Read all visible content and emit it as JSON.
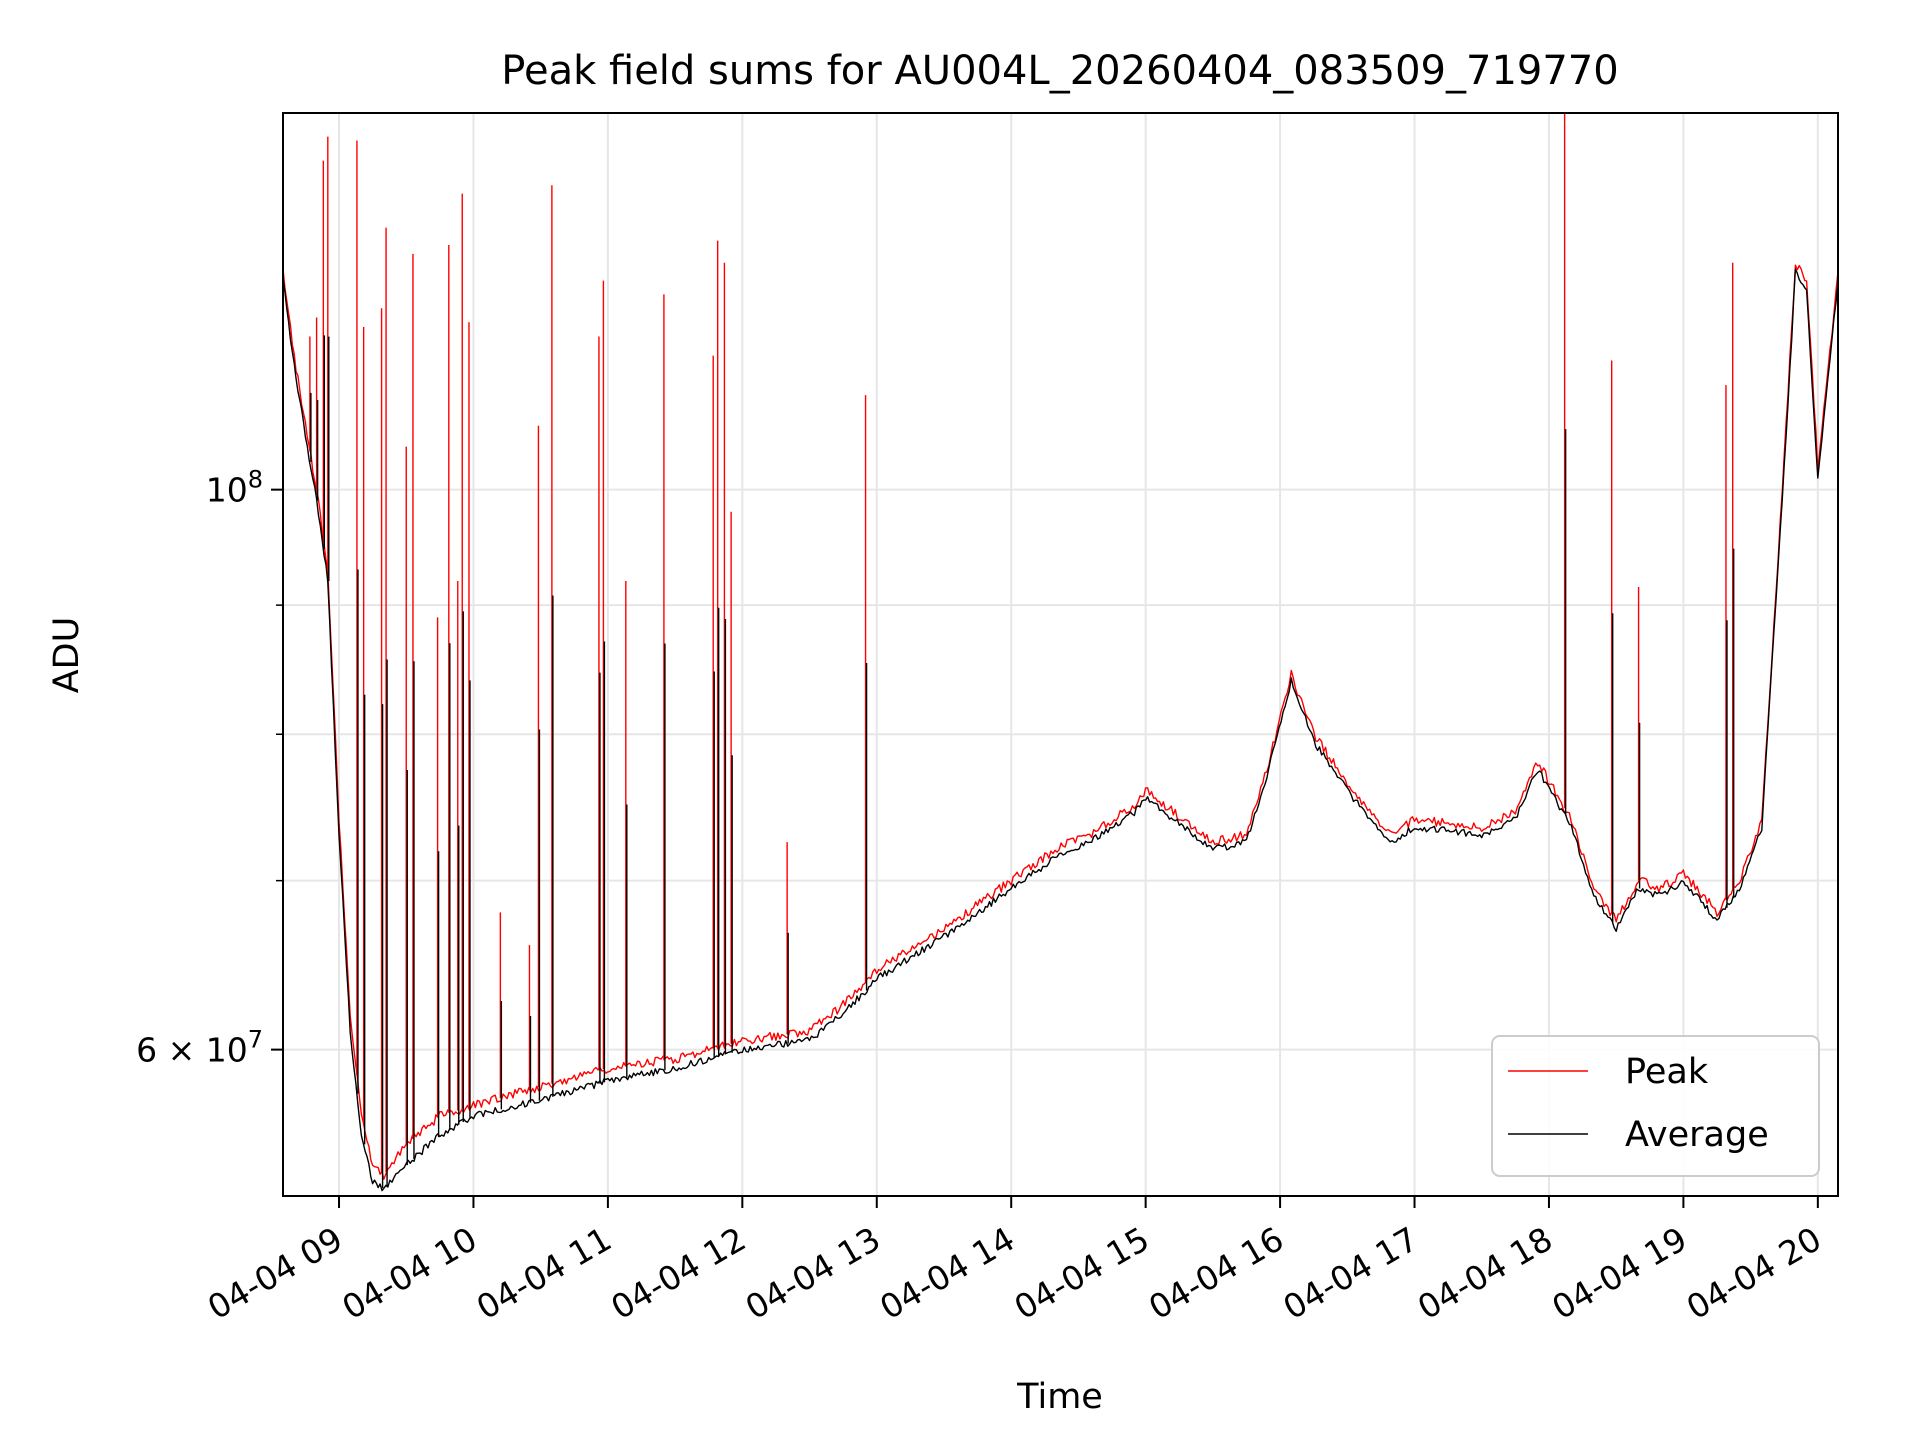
{
  "chart_data": {
    "type": "line",
    "title": "Peak field sums for AU004L_20260404_083509_719770",
    "xlabel": "Time",
    "ylabel": "ADU",
    "yscale": "log",
    "grid": true,
    "legend_position": "lower-right",
    "xlim": [
      "2026-04-04 08:35",
      "2026-04-04 20:09"
    ],
    "ylim": [
      52500000,
      141000000
    ],
    "x_ticks": [
      {
        "value": "2026-04-04 09:00",
        "label": "04-04 09"
      },
      {
        "value": "2026-04-04 10:00",
        "label": "04-04 10"
      },
      {
        "value": "2026-04-04 11:00",
        "label": "04-04 11"
      },
      {
        "value": "2026-04-04 12:00",
        "label": "04-04 12"
      },
      {
        "value": "2026-04-04 13:00",
        "label": "04-04 13"
      },
      {
        "value": "2026-04-04 14:00",
        "label": "04-04 14"
      },
      {
        "value": "2026-04-04 15:00",
        "label": "04-04 15"
      },
      {
        "value": "2026-04-04 16:00",
        "label": "04-04 16"
      },
      {
        "value": "2026-04-04 17:00",
        "label": "04-04 17"
      },
      {
        "value": "2026-04-04 18:00",
        "label": "04-04 18"
      },
      {
        "value": "2026-04-04 19:00",
        "label": "04-04 19"
      },
      {
        "value": "2026-04-04 20:00",
        "label": "04-04 20"
      }
    ],
    "y_major_ticks": [
      {
        "value": 60000000,
        "label_base": "6 × 10",
        "label_exp": "7"
      },
      {
        "value": 100000000,
        "label_base": "10",
        "label_exp": "8"
      }
    ],
    "y_minor_gridlines": [
      70000000,
      80000000,
      90000000
    ],
    "series": [
      {
        "name": "Peak",
        "color": "#ff0000",
        "x": [
          "2026-04-04 08:35",
          "2026-04-04 08:40",
          "2026-04-04 08:45",
          "2026-04-04 08:50",
          "2026-04-04 08:55",
          "2026-04-04 09:00",
          "2026-04-04 09:05",
          "2026-04-04 09:10",
          "2026-04-04 09:15",
          "2026-04-04 09:20",
          "2026-04-04 09:30",
          "2026-04-04 09:45",
          "2026-04-04 10:00",
          "2026-04-04 10:30",
          "2026-04-04 11:00",
          "2026-04-04 11:30",
          "2026-04-04 12:00",
          "2026-04-04 12:30",
          "2026-04-04 12:45",
          "2026-04-04 13:00",
          "2026-04-04 13:30",
          "2026-04-04 14:00",
          "2026-04-04 14:15",
          "2026-04-04 14:25",
          "2026-04-04 14:35",
          "2026-04-04 14:45",
          "2026-04-04 14:55",
          "2026-04-04 15:00",
          "2026-04-04 15:30",
          "2026-04-04 15:45",
          "2026-04-04 15:55",
          "2026-04-04 16:05",
          "2026-04-04 16:15",
          "2026-04-04 16:30",
          "2026-04-04 16:40",
          "2026-04-04 16:50",
          "2026-04-04 17:00",
          "2026-04-04 17:30",
          "2026-04-04 17:45",
          "2026-04-04 17:55",
          "2026-04-04 18:10",
          "2026-04-04 18:20",
          "2026-04-04 18:30",
          "2026-04-04 18:40",
          "2026-04-04 18:50",
          "2026-04-04 19:00",
          "2026-04-04 19:15",
          "2026-04-04 19:25",
          "2026-04-04 19:35",
          "2026-04-04 19:45",
          "2026-04-04 19:50",
          "2026-04-04 19:55",
          "2026-04-04 20:00",
          "2026-04-04 20:09"
        ],
        "y": [
          122000000,
          113000000,
          106000000,
          100000000,
          93000000,
          74000000,
          62000000,
          56500000,
          54000000,
          53500000,
          55000000,
          56500000,
          57000000,
          58000000,
          59000000,
          59500000,
          60500000,
          61000000,
          62500000,
          64500000,
          67000000,
          70000000,
          71500000,
          72500000,
          73000000,
          74000000,
          75000000,
          76000000,
          72500000,
          73000000,
          78000000,
          84500000,
          80000000,
          76500000,
          74500000,
          73000000,
          74000000,
          73500000,
          74500000,
          78000000,
          74000000,
          69500000,
          67500000,
          70000000,
          69500000,
          70500000,
          68000000,
          70000000,
          74000000,
          103000000,
          123000000,
          121000000,
          102000000,
          122000000
        ],
        "spikes": [
          {
            "x": "2026-04-04 08:47",
            "y": 115000000
          },
          {
            "x": "2026-04-04 08:50",
            "y": 117000000
          },
          {
            "x": "2026-04-04 08:53",
            "y": 135000000
          },
          {
            "x": "2026-04-04 08:55",
            "y": 138000000
          },
          {
            "x": "2026-04-04 09:08",
            "y": 137500000
          },
          {
            "x": "2026-04-04 09:11",
            "y": 116000000
          },
          {
            "x": "2026-04-04 09:19",
            "y": 118000000
          },
          {
            "x": "2026-04-04 09:21",
            "y": 127000000
          },
          {
            "x": "2026-04-04 09:30",
            "y": 104000000
          },
          {
            "x": "2026-04-04 09:33",
            "y": 124000000
          },
          {
            "x": "2026-04-04 09:44",
            "y": 89000000
          },
          {
            "x": "2026-04-04 09:49",
            "y": 125000000
          },
          {
            "x": "2026-04-04 09:53",
            "y": 92000000
          },
          {
            "x": "2026-04-04 09:55",
            "y": 131000000
          },
          {
            "x": "2026-04-04 09:58",
            "y": 116500000
          },
          {
            "x": "2026-04-04 10:12",
            "y": 68000000
          },
          {
            "x": "2026-04-04 10:25",
            "y": 66000000
          },
          {
            "x": "2026-04-04 10:29",
            "y": 106000000
          },
          {
            "x": "2026-04-04 10:35",
            "y": 132000000
          },
          {
            "x": "2026-04-04 10:56",
            "y": 115000000
          },
          {
            "x": "2026-04-04 10:58",
            "y": 121000000
          },
          {
            "x": "2026-04-04 11:08",
            "y": 92000000
          },
          {
            "x": "2026-04-04 11:25",
            "y": 119500000
          },
          {
            "x": "2026-04-04 11:47",
            "y": 113000000
          },
          {
            "x": "2026-04-04 11:49",
            "y": 125500000
          },
          {
            "x": "2026-04-04 11:52",
            "y": 123000000
          },
          {
            "x": "2026-04-04 11:55",
            "y": 98000000
          },
          {
            "x": "2026-04-04 12:20",
            "y": 72500000
          },
          {
            "x": "2026-04-04 12:55",
            "y": 109000000
          },
          {
            "x": "2026-04-04 18:07",
            "y": 141000000
          },
          {
            "x": "2026-04-04 18:28",
            "y": 112500000
          },
          {
            "x": "2026-04-04 18:40",
            "y": 91500000
          },
          {
            "x": "2026-04-04 19:19",
            "y": 110000000
          },
          {
            "x": "2026-04-04 19:22",
            "y": 123000000
          }
        ]
      },
      {
        "name": "Average",
        "color": "#000000",
        "x": [
          "2026-04-04 08:35",
          "2026-04-04 08:40",
          "2026-04-04 08:45",
          "2026-04-04 08:50",
          "2026-04-04 08:55",
          "2026-04-04 09:00",
          "2026-04-04 09:05",
          "2026-04-04 09:10",
          "2026-04-04 09:15",
          "2026-04-04 09:20",
          "2026-04-04 09:30",
          "2026-04-04 09:45",
          "2026-04-04 10:00",
          "2026-04-04 10:30",
          "2026-04-04 11:00",
          "2026-04-04 11:30",
          "2026-04-04 12:00",
          "2026-04-04 12:30",
          "2026-04-04 12:45",
          "2026-04-04 13:00",
          "2026-04-04 13:30",
          "2026-04-04 14:00",
          "2026-04-04 14:15",
          "2026-04-04 14:25",
          "2026-04-04 14:35",
          "2026-04-04 14:45",
          "2026-04-04 14:55",
          "2026-04-04 15:00",
          "2026-04-04 15:30",
          "2026-04-04 15:45",
          "2026-04-04 15:55",
          "2026-04-04 16:05",
          "2026-04-04 16:15",
          "2026-04-04 16:30",
          "2026-04-04 16:40",
          "2026-04-04 16:50",
          "2026-04-04 17:00",
          "2026-04-04 17:30",
          "2026-04-04 17:45",
          "2026-04-04 17:55",
          "2026-04-04 18:10",
          "2026-04-04 18:20",
          "2026-04-04 18:30",
          "2026-04-04 18:40",
          "2026-04-04 18:50",
          "2026-04-04 19:00",
          "2026-04-04 19:15",
          "2026-04-04 19:25",
          "2026-04-04 19:35",
          "2026-04-04 19:45",
          "2026-04-04 19:50",
          "2026-04-04 19:55",
          "2026-04-04 20:00",
          "2026-04-04 20:09"
        ],
        "y": [
          121000000,
          112000000,
          105000000,
          99000000,
          92000000,
          73000000,
          61000000,
          55500000,
          53200000,
          52800000,
          54000000,
          55500000,
          56500000,
          57300000,
          58300000,
          59000000,
          60000000,
          60500000,
          62000000,
          64000000,
          66500000,
          69500000,
          71000000,
          72000000,
          72500000,
          73500000,
          74500000,
          75500000,
          72000000,
          72500000,
          77500000,
          84000000,
          79500000,
          76000000,
          74000000,
          72500000,
          73500000,
          73000000,
          74000000,
          77500000,
          73500000,
          69000000,
          67000000,
          69500000,
          69000000,
          70000000,
          67500000,
          69500000,
          73500000,
          102000000,
          122000000,
          120000000,
          101000000,
          121000000
        ]
      }
    ]
  }
}
